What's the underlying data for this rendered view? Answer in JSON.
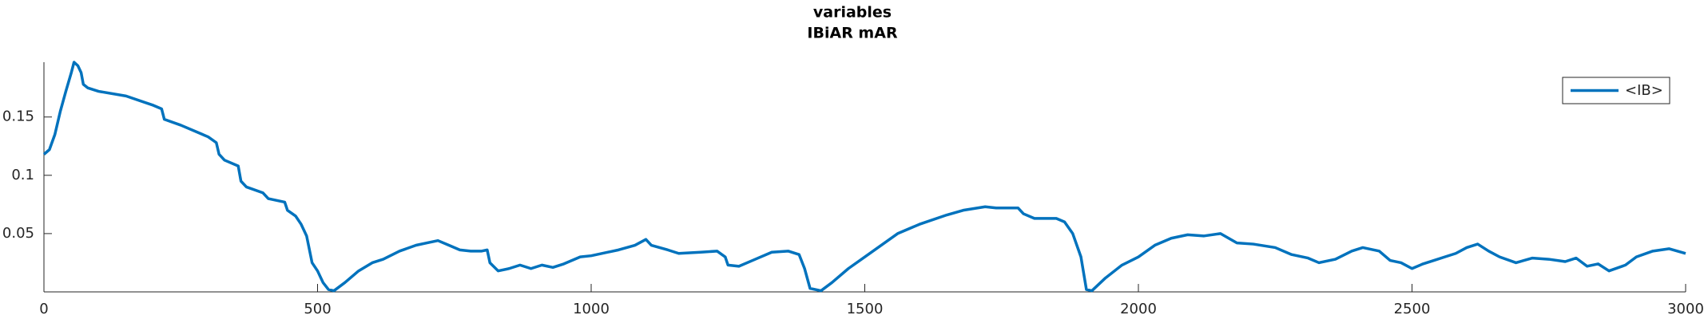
{
  "chart_data": {
    "type": "line",
    "title": "variables",
    "subtitle": "IBiAR mAR",
    "xlim": [
      0,
      3000
    ],
    "xticks": [
      0,
      500,
      1000,
      1500,
      2000,
      2500,
      3000
    ],
    "ylim": [
      0,
      0.197
    ],
    "yticks": [
      0.05,
      0.1,
      0.15
    ],
    "legend": "top-right",
    "x": [
      0,
      10,
      20,
      30,
      40,
      50,
      55,
      62,
      68,
      72,
      80,
      100,
      150,
      200,
      215,
      220,
      250,
      300,
      315,
      320,
      330,
      355,
      360,
      370,
      400,
      410,
      440,
      445,
      460,
      470,
      480,
      490,
      500,
      510,
      520,
      530,
      550,
      575,
      600,
      620,
      650,
      680,
      700,
      720,
      740,
      760,
      780,
      800,
      810,
      815,
      830,
      850,
      870,
      890,
      910,
      930,
      950,
      980,
      1000,
      1050,
      1080,
      1100,
      1110,
      1140,
      1160,
      1200,
      1230,
      1245,
      1250,
      1270,
      1300,
      1330,
      1360,
      1380,
      1390,
      1400,
      1420,
      1440,
      1470,
      1500,
      1530,
      1560,
      1600,
      1650,
      1680,
      1720,
      1740,
      1780,
      1790,
      1810,
      1850,
      1865,
      1880,
      1895,
      1905,
      1915,
      1940,
      1970,
      2000,
      2030,
      2060,
      2090,
      2120,
      2150,
      2180,
      2210,
      2250,
      2280,
      2310,
      2330,
      2360,
      2390,
      2410,
      2440,
      2460,
      2480,
      2500,
      2520,
      2540,
      2560,
      2580,
      2600,
      2620,
      2640,
      2660,
      2690,
      2720,
      2750,
      2780,
      2800,
      2820,
      2840,
      2860,
      2890,
      2910,
      2940,
      2970,
      3000
    ],
    "series": [
      {
        "name": "<IB>",
        "color": "#0072bd",
        "values": [
          0.118,
          0.122,
          0.135,
          0.155,
          0.172,
          0.188,
          0.197,
          0.194,
          0.188,
          0.178,
          0.175,
          0.172,
          0.168,
          0.16,
          0.157,
          0.148,
          0.143,
          0.133,
          0.128,
          0.118,
          0.113,
          0.108,
          0.095,
          0.09,
          0.085,
          0.08,
          0.077,
          0.07,
          0.065,
          0.058,
          0.048,
          0.025,
          0.018,
          0.008,
          0.002,
          0.001,
          0.008,
          0.018,
          0.025,
          0.028,
          0.035,
          0.04,
          0.042,
          0.044,
          0.04,
          0.036,
          0.035,
          0.035,
          0.036,
          0.025,
          0.018,
          0.02,
          0.023,
          0.02,
          0.023,
          0.021,
          0.024,
          0.03,
          0.031,
          0.036,
          0.04,
          0.045,
          0.04,
          0.036,
          0.033,
          0.034,
          0.035,
          0.03,
          0.023,
          0.022,
          0.028,
          0.034,
          0.035,
          0.032,
          0.02,
          0.003,
          0.001,
          0.008,
          0.02,
          0.03,
          0.04,
          0.05,
          0.058,
          0.066,
          0.07,
          0.073,
          0.072,
          0.072,
          0.067,
          0.063,
          0.063,
          0.06,
          0.05,
          0.03,
          0.002,
          0.001,
          0.012,
          0.023,
          0.03,
          0.04,
          0.046,
          0.049,
          0.048,
          0.05,
          0.042,
          0.041,
          0.038,
          0.032,
          0.029,
          0.025,
          0.028,
          0.035,
          0.038,
          0.035,
          0.027,
          0.025,
          0.02,
          0.024,
          0.027,
          0.03,
          0.033,
          0.038,
          0.041,
          0.035,
          0.03,
          0.025,
          0.029,
          0.028,
          0.026,
          0.029,
          0.022,
          0.024,
          0.018,
          0.023,
          0.03,
          0.035,
          0.037,
          0.033
        ]
      }
    ]
  }
}
